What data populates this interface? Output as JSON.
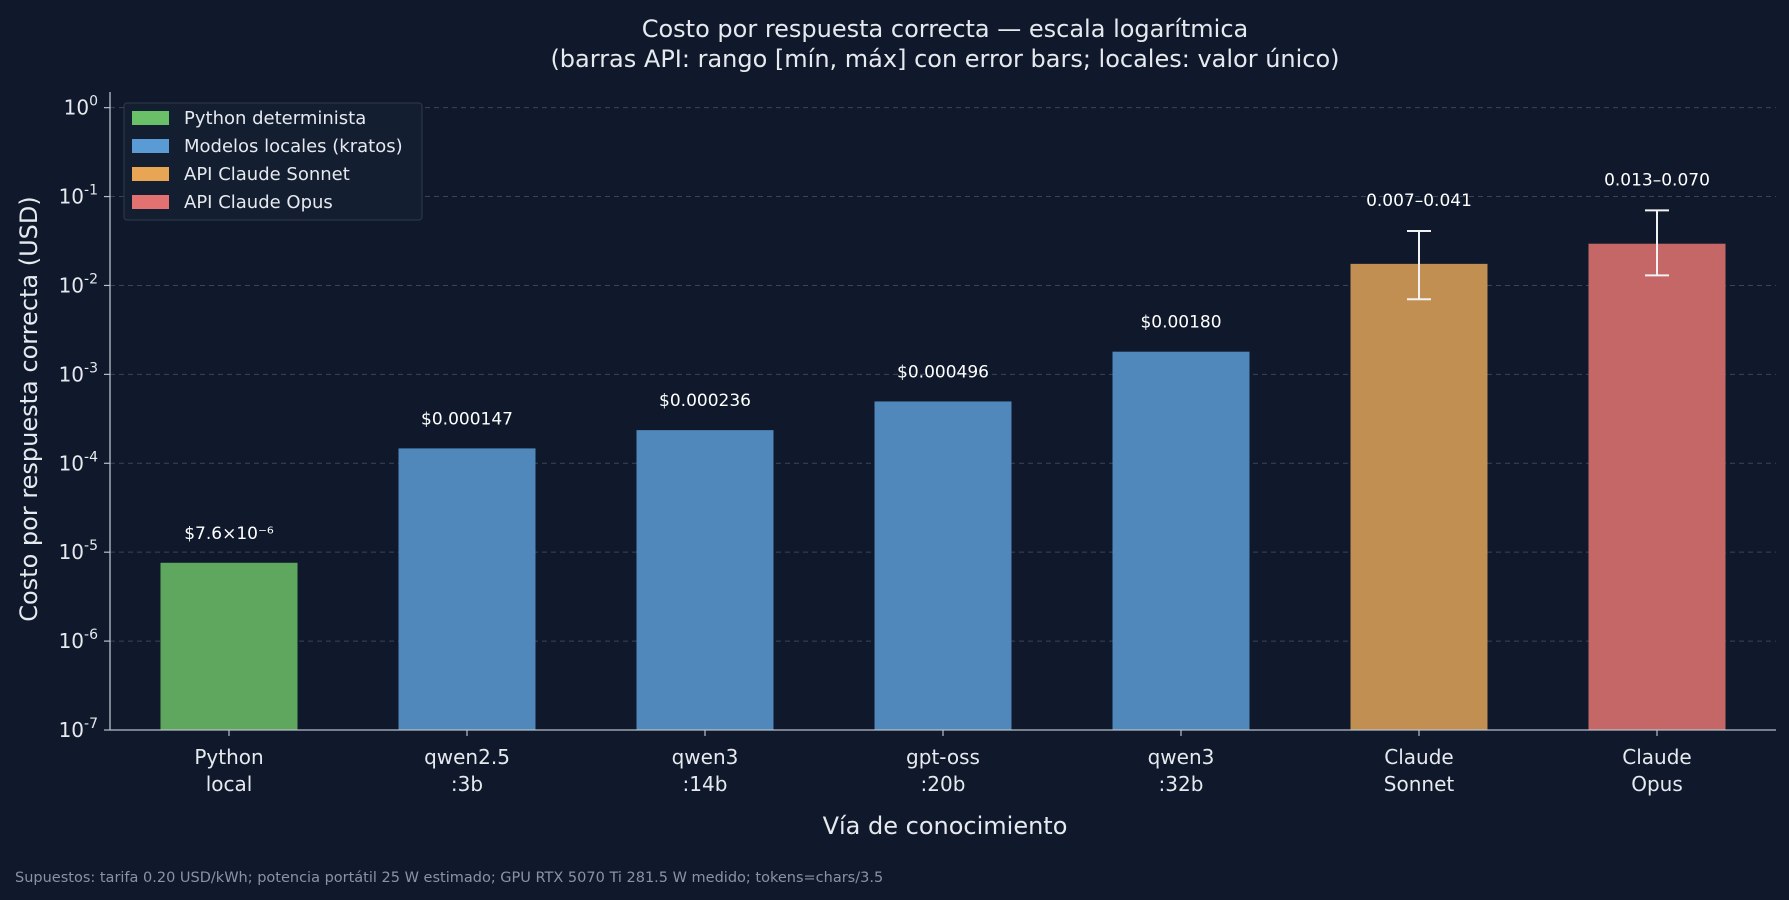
{
  "chart_data": {
    "type": "bar",
    "title": "Costo por respuesta correcta — escala logarítmica",
    "subtitle": "(barras API: rango [mín, máx] con error bars; locales: valor único)",
    "xlabel": "Vía de conocimiento",
    "ylabel": "Costo por respuesta correcta (USD)",
    "yscale": "log",
    "ylim": [
      1e-07,
      1.5
    ],
    "yticks": [
      1e-07,
      1e-06,
      1e-05,
      0.0001,
      0.001,
      0.01,
      0.1,
      1
    ],
    "ytick_labels": [
      "10^-7",
      "10^-6",
      "10^-5",
      "10^-4",
      "10^-3",
      "10^-2",
      "10^-1",
      "10^0"
    ],
    "grid": "y dashed",
    "legend_position": "top-left",
    "categories": [
      [
        "Python",
        "local"
      ],
      [
        "qwen2.5",
        ":3b"
      ],
      [
        "qwen3",
        ":14b"
      ],
      [
        "gpt-oss",
        ":20b"
      ],
      [
        "qwen3",
        ":32b"
      ],
      [
        "Claude",
        "Sonnet"
      ],
      [
        "Claude",
        "Opus"
      ]
    ],
    "values": [
      7.6e-06,
      0.000147,
      0.000236,
      0.000496,
      0.0018,
      0.0175,
      0.0295
    ],
    "value_labels": [
      "$7.6×10⁻⁶",
      "$0.000147",
      "$0.000236",
      "$0.000496",
      "$0.00180",
      "0.007–0.041",
      "0.013–0.070"
    ],
    "error_ranges": [
      null,
      null,
      null,
      null,
      null,
      [
        0.007,
        0.041
      ],
      [
        0.013,
        0.07
      ]
    ],
    "bar_groups": [
      "python",
      "local",
      "local",
      "local",
      "local",
      "sonnet",
      "opus"
    ],
    "legend": [
      {
        "key": "python",
        "label": "Python determinista",
        "color": "#6abf69"
      },
      {
        "key": "local",
        "label": "Modelos locales (kratos)",
        "color": "#5b9bd5"
      },
      {
        "key": "sonnet",
        "label": "API Claude Sonnet",
        "color": "#e8a554"
      },
      {
        "key": "opus",
        "label": "API Claude Opus",
        "color": "#e27272"
      }
    ],
    "bar_colors": {
      "python": "#5fa75f",
      "local": "#5088bb",
      "sonnet": "#c28f52",
      "opus": "#c56667"
    },
    "footnote": "Supuestos: tarifa 0.20 USD/kWh; potencia portátil 25 W estimado; GPU RTX 5070 Ti 281.5 W medido; tokens=chars/3.5"
  }
}
